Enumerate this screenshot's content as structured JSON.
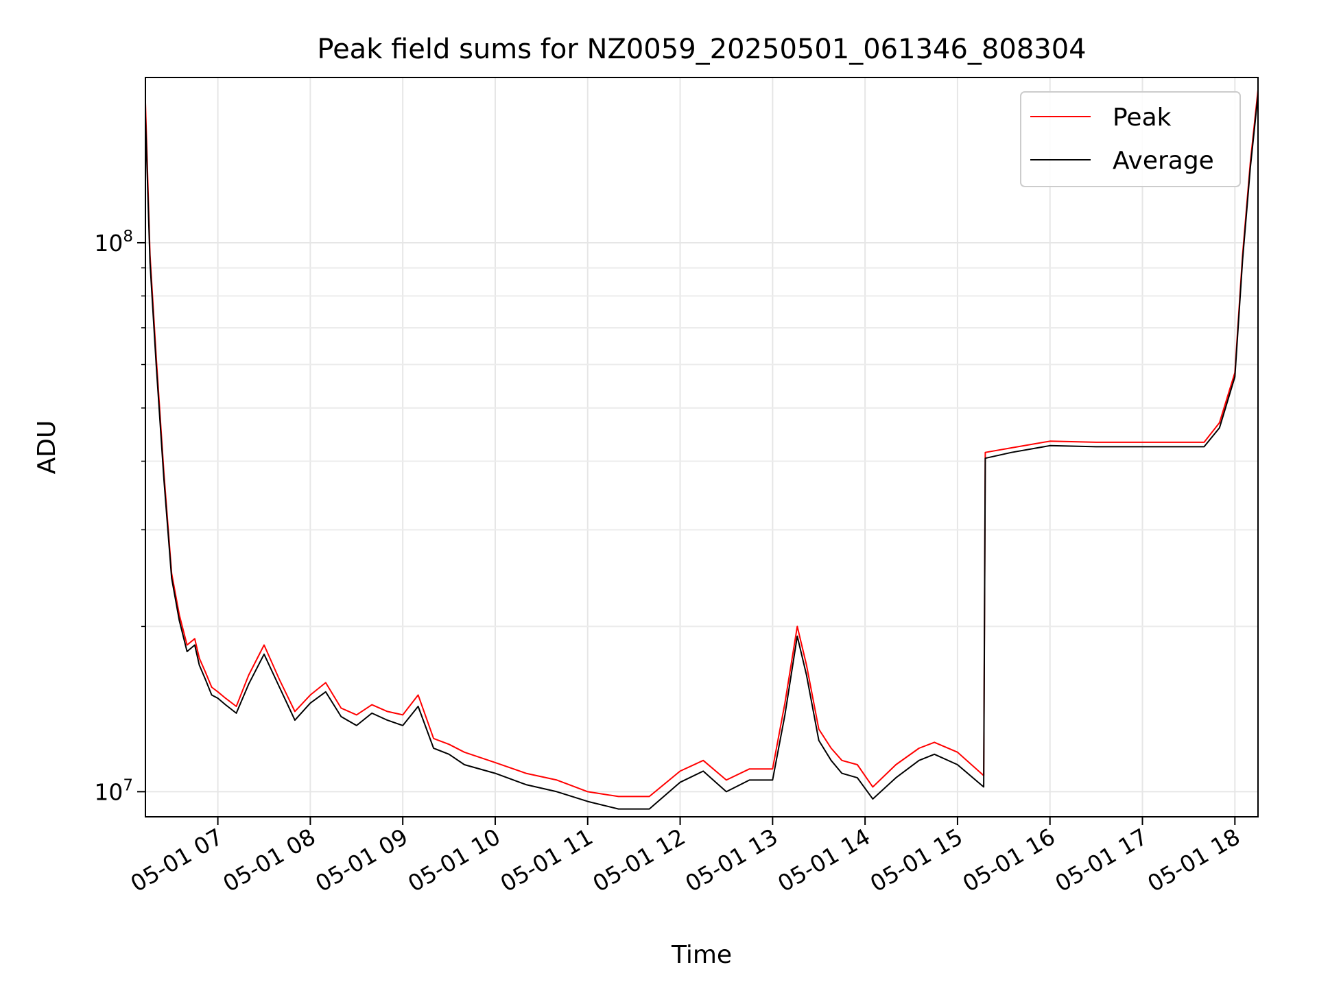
{
  "chart_data": {
    "type": "line",
    "title": "Peak field sums for NZ0059_20250501_061346_808304",
    "xlabel": "Time",
    "ylabel": "ADU",
    "yscale": "log",
    "xlim": [
      "2025-05-01 06:13",
      "2025-05-01 18:15"
    ],
    "ylim": [
      9000000,
      200000000
    ],
    "grid": true,
    "legend": {
      "position": "top-right",
      "entries": [
        "Peak",
        "Average"
      ]
    },
    "x_ticks": [
      {
        "t": "2025-05-01 07:00",
        "label": "05-01 07"
      },
      {
        "t": "2025-05-01 08:00",
        "label": "05-01 08"
      },
      {
        "t": "2025-05-01 09:00",
        "label": "05-01 09"
      },
      {
        "t": "2025-05-01 10:00",
        "label": "05-01 10"
      },
      {
        "t": "2025-05-01 11:00",
        "label": "05-01 11"
      },
      {
        "t": "2025-05-01 12:00",
        "label": "05-01 12"
      },
      {
        "t": "2025-05-01 13:00",
        "label": "05-01 13"
      },
      {
        "t": "2025-05-01 14:00",
        "label": "05-01 14"
      },
      {
        "t": "2025-05-01 15:00",
        "label": "05-01 15"
      },
      {
        "t": "2025-05-01 16:00",
        "label": "05-01 16"
      },
      {
        "t": "2025-05-01 17:00",
        "label": "05-01 17"
      },
      {
        "t": "2025-05-01 18:00",
        "label": "05-01 18"
      }
    ],
    "y_ticks": [
      {
        "value": 10000000,
        "base": "10",
        "exp": "7"
      },
      {
        "value": 100000000,
        "base": "10",
        "exp": "8"
      }
    ],
    "x": [
      "2025-05-01 06:13",
      "2025-05-01 06:16",
      "2025-05-01 06:20",
      "2025-05-01 06:25",
      "2025-05-01 06:30",
      "2025-05-01 06:35",
      "2025-05-01 06:40",
      "2025-05-01 06:45",
      "2025-05-01 06:48",
      "2025-05-01 06:52",
      "2025-05-01 06:56",
      "2025-05-01 07:00",
      "2025-05-01 07:05",
      "2025-05-01 07:12",
      "2025-05-01 07:20",
      "2025-05-01 07:30",
      "2025-05-01 07:40",
      "2025-05-01 07:50",
      "2025-05-01 08:00",
      "2025-05-01 08:10",
      "2025-05-01 08:20",
      "2025-05-01 08:30",
      "2025-05-01 08:40",
      "2025-05-01 08:50",
      "2025-05-01 09:00",
      "2025-05-01 09:10",
      "2025-05-01 09:20",
      "2025-05-01 09:30",
      "2025-05-01 09:40",
      "2025-05-01 10:00",
      "2025-05-01 10:20",
      "2025-05-01 10:40",
      "2025-05-01 11:00",
      "2025-05-01 11:20",
      "2025-05-01 11:40",
      "2025-05-01 12:00",
      "2025-05-01 12:15",
      "2025-05-01 12:30",
      "2025-05-01 12:45",
      "2025-05-01 13:00",
      "2025-05-01 13:08",
      "2025-05-01 13:16",
      "2025-05-01 13:22",
      "2025-05-01 13:30",
      "2025-05-01 13:38",
      "2025-05-01 13:45",
      "2025-05-01 13:55",
      "2025-05-01 14:05",
      "2025-05-01 14:20",
      "2025-05-01 14:35",
      "2025-05-01 14:45",
      "2025-05-01 15:00",
      "2025-05-01 15:17",
      "2025-05-01 15:18",
      "2025-05-01 15:35",
      "2025-05-01 16:00",
      "2025-05-01 16:30",
      "2025-05-01 17:00",
      "2025-05-01 17:30",
      "2025-05-01 17:40",
      "2025-05-01 17:50",
      "2025-05-01 18:00",
      "2025-05-01 18:05",
      "2025-05-01 18:10",
      "2025-05-01 18:15"
    ],
    "series": [
      {
        "name": "Peak",
        "color": "#ff0000",
        "values": [
          180000000,
          95000000,
          62000000,
          38000000,
          25000000,
          21000000,
          18500000,
          19000000,
          17500000,
          16500000,
          15500000,
          15200000,
          14800000,
          14300000,
          16300000,
          18500000,
          16000000,
          14000000,
          15000000,
          15800000,
          14200000,
          13800000,
          14400000,
          14000000,
          13800000,
          15000000,
          12500000,
          12200000,
          11800000,
          11300000,
          10800000,
          10500000,
          10000000,
          9800000,
          9800000,
          10900000,
          11400000,
          10500000,
          11000000,
          11000000,
          14500000,
          20000000,
          17000000,
          13000000,
          12000000,
          11400000,
          11200000,
          10200000,
          11200000,
          12000000,
          12300000,
          11800000,
          10700000,
          41500000,
          42300000,
          43500000,
          43300000,
          43300000,
          43300000,
          43300000,
          47000000,
          58000000,
          95000000,
          140000000,
          190000000
        ]
      },
      {
        "name": "Average",
        "color": "#000000",
        "values": [
          170000000,
          92000000,
          60000000,
          37000000,
          24500000,
          20500000,
          18000000,
          18500000,
          17000000,
          16000000,
          15000000,
          14800000,
          14400000,
          13900000,
          15700000,
          17800000,
          15500000,
          13500000,
          14500000,
          15200000,
          13700000,
          13200000,
          13900000,
          13500000,
          13200000,
          14300000,
          12000000,
          11700000,
          11200000,
          10800000,
          10300000,
          10000000,
          9600000,
          9300000,
          9300000,
          10400000,
          10900000,
          10000000,
          10500000,
          10500000,
          13800000,
          19200000,
          16300000,
          12400000,
          11400000,
          10800000,
          10600000,
          9700000,
          10600000,
          11400000,
          11700000,
          11200000,
          10200000,
          40500000,
          41500000,
          42700000,
          42500000,
          42500000,
          42500000,
          42500000,
          46000000,
          57000000,
          93000000,
          137000000,
          186000000
        ]
      }
    ]
  }
}
